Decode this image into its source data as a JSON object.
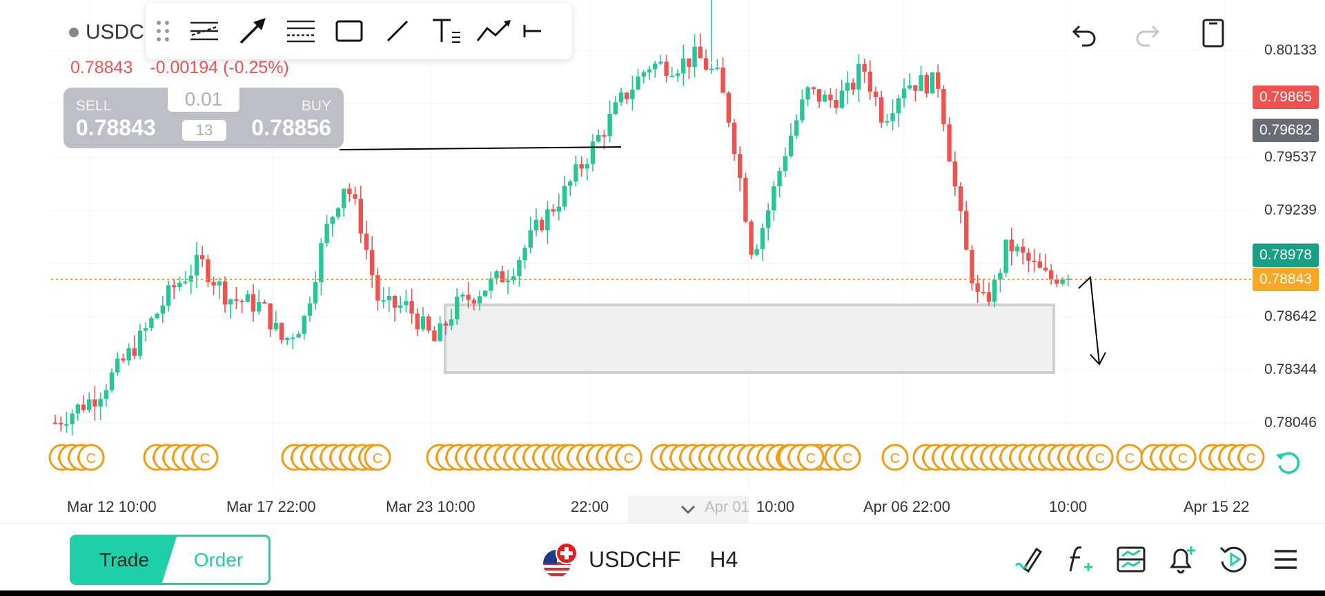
{
  "symbol": {
    "name": "USDCHF",
    "timeframe": "H4",
    "header_label": "USDCI"
  },
  "quote": {
    "last": "0.78843",
    "change": "-0.00194 (-0.25%)"
  },
  "trade_widget": {
    "sell_label": "SELL",
    "buy_label": "BUY",
    "sell_price": "0.78843",
    "buy_price": "0.78856",
    "quantity": "0.01",
    "spread": "13"
  },
  "price_axis": {
    "labels": [
      "0.80133",
      "0.79537",
      "0.79239",
      "0.78642",
      "0.78344",
      "0.78046"
    ],
    "tags": {
      "high_tag": "0.79865",
      "high_tag_color": "#ef5350",
      "gray_tag": "0.79682",
      "gray_tag_color": "#686c74",
      "green_tag": "0.78978",
      "green_tag_color": "#16a085",
      "current_tag": "0.78843",
      "current_tag_color": "#f9a825"
    }
  },
  "time_axis": {
    "labels": [
      "Mar 12 10:00",
      "Mar 17 22:00",
      "Mar 23 10:00",
      "22:00",
      "Apr 01",
      "10:00",
      "Apr 06 22:00",
      "10:00",
      "Apr 15 22"
    ]
  },
  "bottom_bar": {
    "trade_label": "Trade",
    "order_label": "Order"
  },
  "colors": {
    "up": "#26c696",
    "down": "#ef5350",
    "accent": "#1ed0a8",
    "event": "#f39c12"
  },
  "toolbar_icons": [
    "drag-handle-icon",
    "parallel-channel-icon",
    "arrow-icon",
    "fib-retracement-icon",
    "rectangle-icon",
    "trend-line-icon",
    "text-tool-icon",
    "path-tool-icon",
    "horizontal-ray-icon"
  ]
}
